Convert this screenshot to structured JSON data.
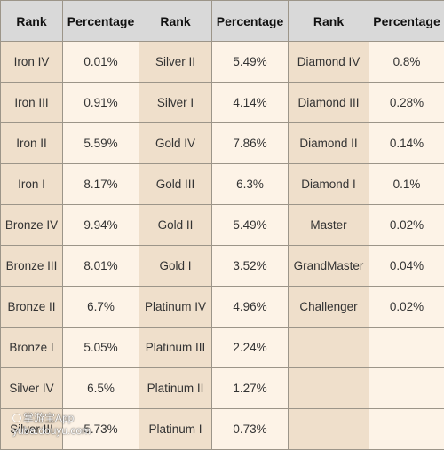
{
  "table": {
    "headers": [
      "Rank",
      "Percentage",
      "Rank",
      "Percentage",
      "Rank",
      "Percentage"
    ],
    "rows": [
      [
        "Iron IV",
        "0.01%",
        "Silver II",
        "5.49%",
        "Diamond IV",
        "0.8%"
      ],
      [
        "Iron III",
        "0.91%",
        "Silver I",
        "4.14%",
        "Diamond III",
        "0.28%"
      ],
      [
        "Iron II",
        "5.59%",
        "Gold IV",
        "7.86%",
        "Diamond II",
        "0.14%"
      ],
      [
        "Iron I",
        "8.17%",
        "Gold III",
        "6.3%",
        "Diamond I",
        "0.1%"
      ],
      [
        "Bronze IV",
        "9.94%",
        "Gold II",
        "5.49%",
        "Master",
        "0.02%"
      ],
      [
        "Bronze III",
        "8.01%",
        "Gold I",
        "3.52%",
        "GrandMaster",
        "0.04%"
      ],
      [
        "Bronze II",
        "6.7%",
        "Platinum IV",
        "4.96%",
        "Challenger",
        "0.02%"
      ],
      [
        "Bronze I",
        "5.05%",
        "Platinum III",
        "2.24%",
        "",
        ""
      ],
      [
        "Silver IV",
        "6.5%",
        "Platinum II",
        "1.27%",
        "",
        ""
      ],
      [
        "Silver III",
        "5.73%",
        "Platinum I",
        "0.73%",
        "",
        ""
      ]
    ]
  },
  "watermark": {
    "line1": "掌游宝App",
    "line2": "yuba.douyu.com"
  },
  "colors": {
    "header_bg": "#d9d9d9",
    "rank_bg": "#efdfcb",
    "pct_bg": "#fdf3e7",
    "border": "#9c9589"
  }
}
